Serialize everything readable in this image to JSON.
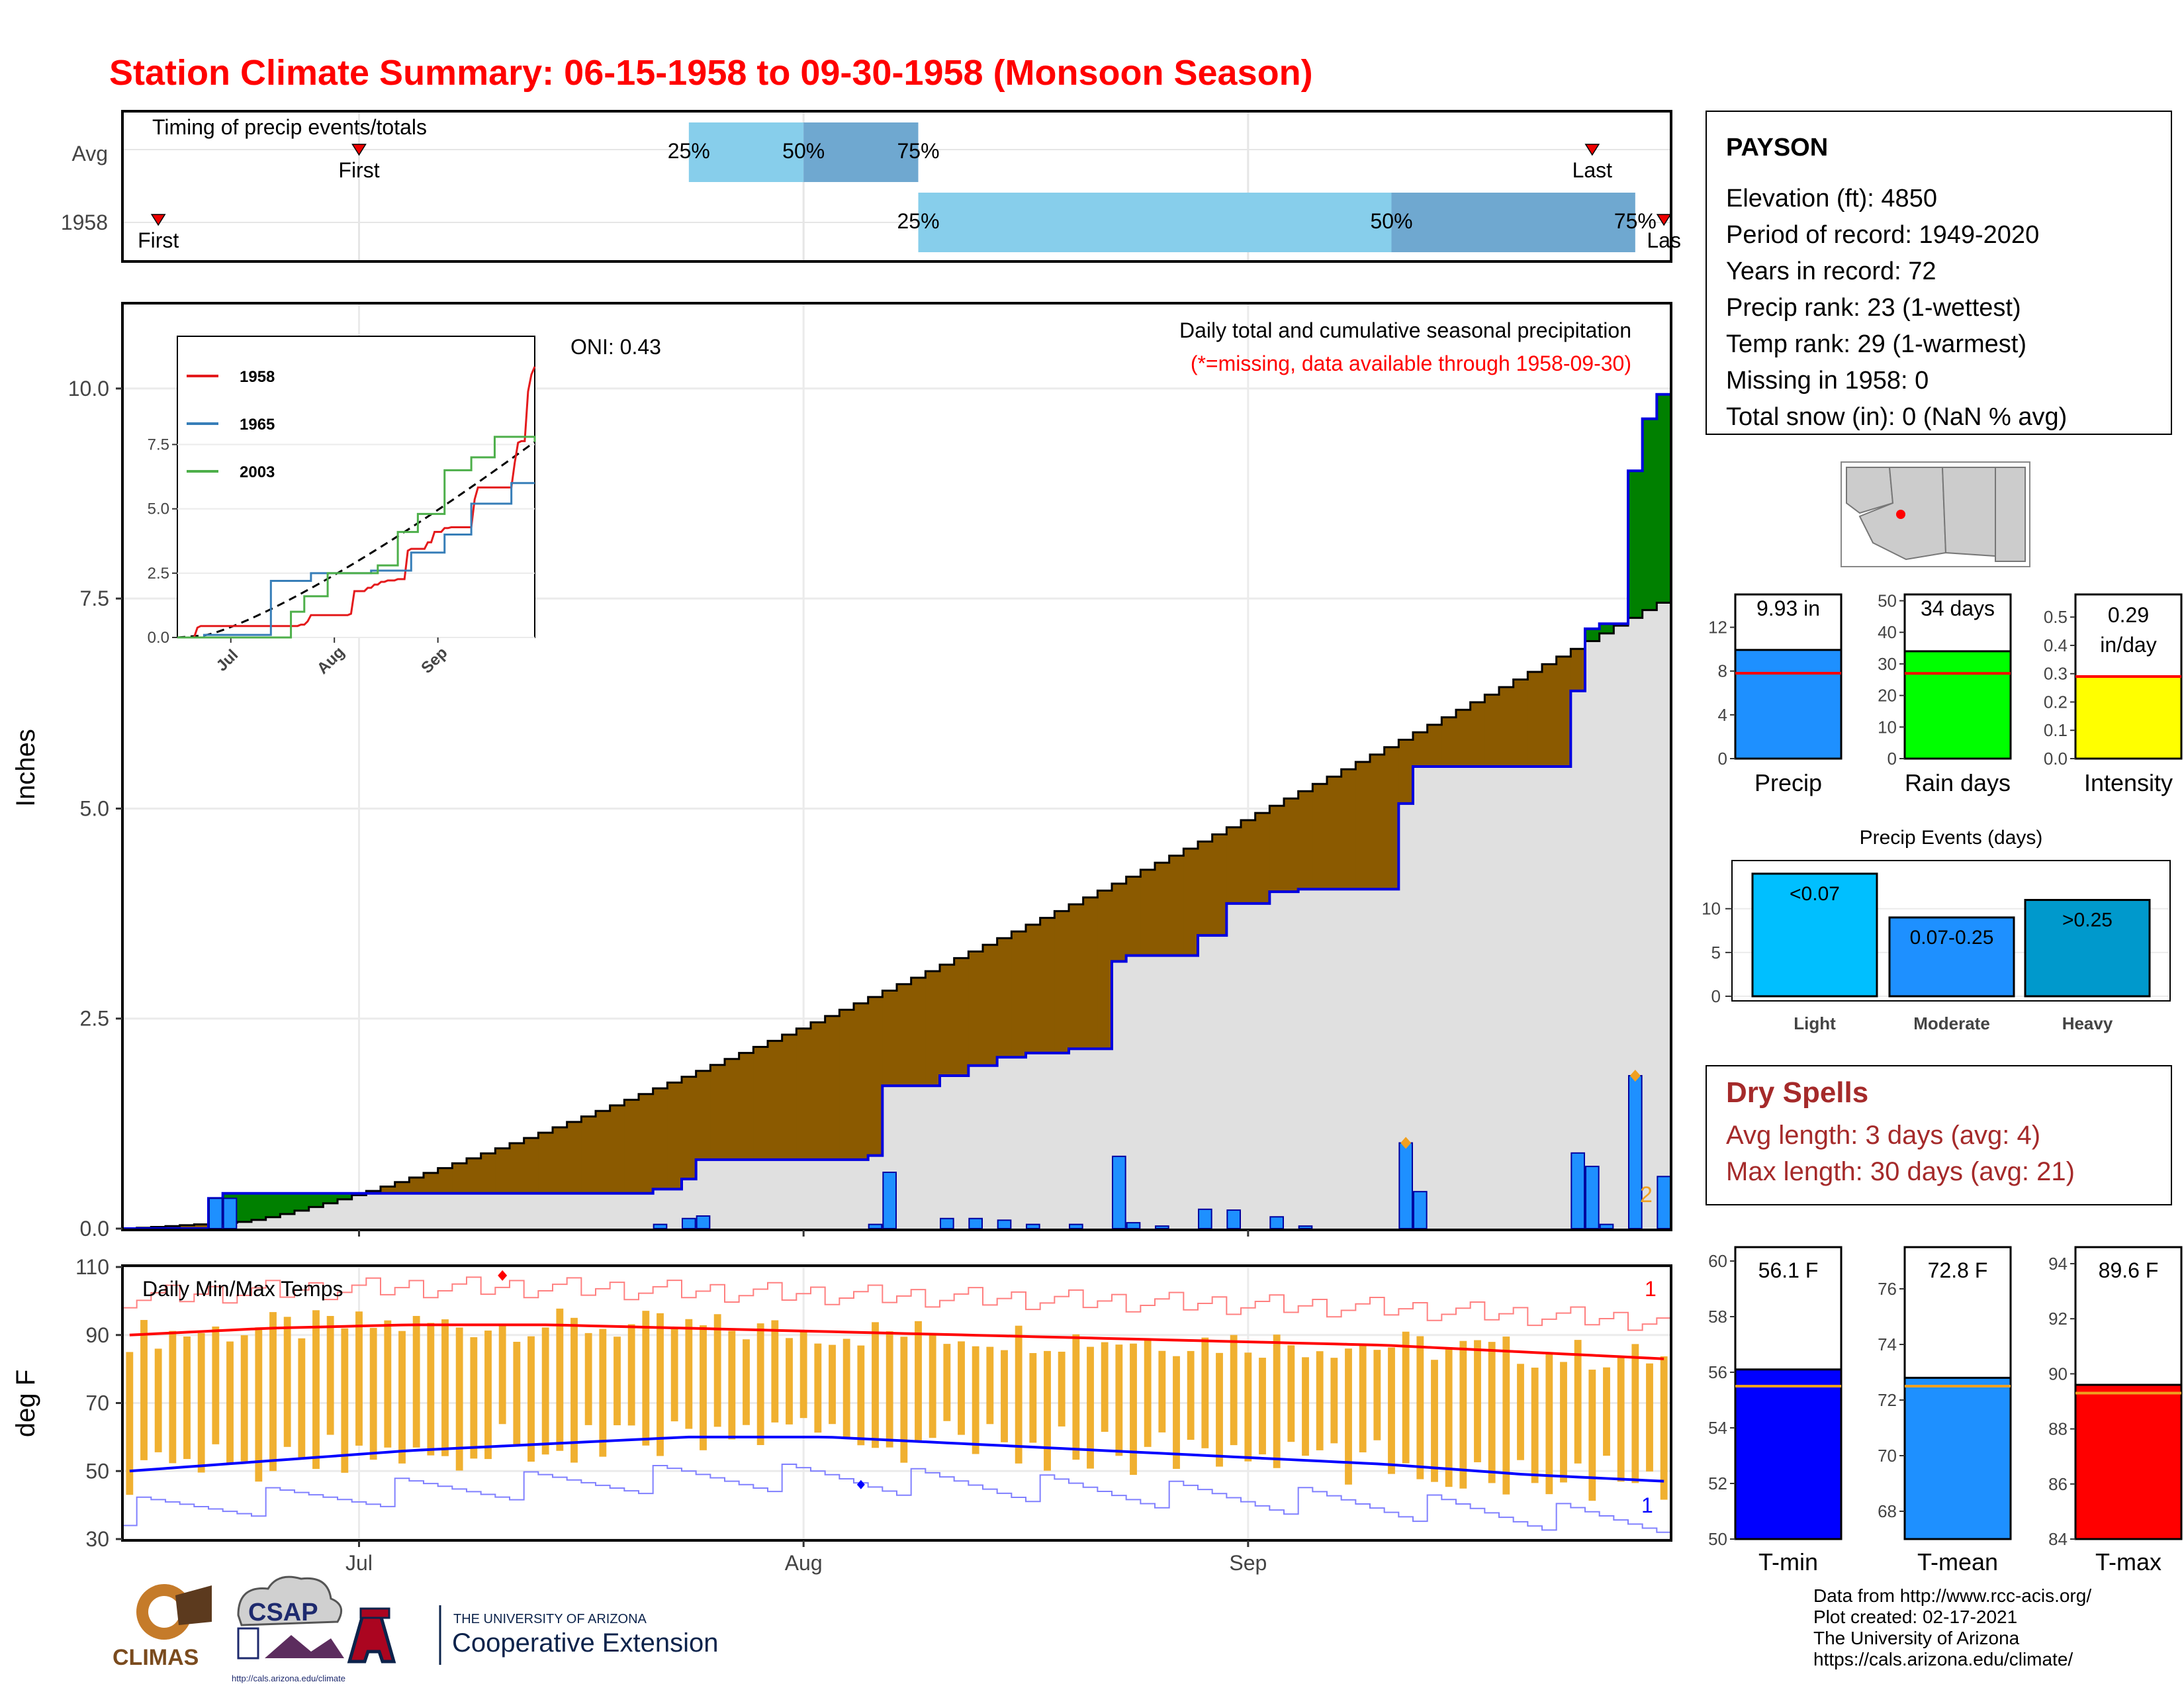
{
  "title": "Station Climate Summary: 06-15-1958 to 09-30-1958 (Monsoon Season)",
  "colors": {
    "title_red": "#ff0000",
    "precip_blue": "#1e90ff",
    "green": "#008000",
    "brown": "#8b5a00",
    "grey": "#e0e0e0",
    "light_blue": "#87ceeb",
    "steel": "#6fa8d0",
    "orange": "#f0b030",
    "tmax_red": "#ff0000",
    "tmin_blue": "#0000ff"
  },
  "timing": {
    "label": "Timing of precip events/totals",
    "rows": [
      "Avg",
      "1958"
    ],
    "avg": {
      "first": "2024-07-01",
      "last": "2024-09-25",
      "p25": "2024-07-24",
      "p50": "2024-08-01",
      "p75": "2024-08-09",
      "first_label": "First",
      "last_label": "Last"
    },
    "y1958": {
      "first": "2024-06-17",
      "last": "2024-09-30",
      "p25": "2024-08-09",
      "p50": "2024-09-11",
      "p75": "2024-09-28",
      "first_label": "First",
      "last_label": "Las"
    },
    "pct_labels": [
      "25%",
      "50%",
      "75%"
    ]
  },
  "chart_data": [
    {
      "type": "area",
      "name": "main-precip",
      "title": "Daily total and cumulative seasonal precipitation",
      "subtitle": "(*=missing, data available through 1958-09-30)",
      "oni": "ONI: 0.43",
      "ylabel": "Inches",
      "ylim": [
        0,
        11
      ],
      "yticks": [
        "0.0",
        "2.5",
        "5.0",
        "7.5",
        "10.0"
      ],
      "xticks": [
        "Jul",
        "Aug",
        "Sep"
      ],
      "x_start": "1958-06-15",
      "x_end": "1958-09-30",
      "daily_precip": [
        {
          "date": "09-12",
          "v": 1.02,
          "diamond": true
        },
        {
          "date": "09-28",
          "v": 1.82,
          "diamond": true
        }
      ],
      "daily_bars": [
        [
          "06-21",
          0.36
        ],
        [
          "06-22",
          0.36
        ],
        [
          "07-22",
          0.05
        ],
        [
          "07-24",
          0.12
        ],
        [
          "07-25",
          0.15
        ],
        [
          "08-06",
          0.05
        ],
        [
          "08-07",
          0.67
        ],
        [
          "08-11",
          0.12
        ],
        [
          "08-13",
          0.12
        ],
        [
          "08-15",
          0.1
        ],
        [
          "08-17",
          0.05
        ],
        [
          "08-20",
          0.05
        ],
        [
          "08-23",
          0.86
        ],
        [
          "08-24",
          0.07
        ],
        [
          "08-26",
          0.03
        ],
        [
          "08-29",
          0.23
        ],
        [
          "08-31",
          0.22
        ],
        [
          "09-03",
          0.14
        ],
        [
          "09-05",
          0.03
        ],
        [
          "09-12",
          1.02
        ],
        [
          "09-13",
          0.44
        ],
        [
          "09-24",
          0.9
        ],
        [
          "09-25",
          0.74
        ],
        [
          "09-26",
          0.05
        ],
        [
          "09-28",
          1.82
        ],
        [
          "09-30",
          0.62
        ]
      ],
      "cum_1958": [
        [
          "06-15",
          0
        ],
        [
          "06-20",
          0
        ],
        [
          "06-21",
          0.36
        ],
        [
          "06-22",
          0.42
        ],
        [
          "07-21",
          0.42
        ],
        [
          "07-22",
          0.47
        ],
        [
          "07-24",
          0.59
        ],
        [
          "07-25",
          0.82
        ],
        [
          "08-06",
          0.87
        ],
        [
          "08-07",
          1.7
        ],
        [
          "08-11",
          1.82
        ],
        [
          "08-13",
          1.94
        ],
        [
          "08-15",
          2.04
        ],
        [
          "08-17",
          2.09
        ],
        [
          "08-20",
          2.14
        ],
        [
          "08-23",
          3.18
        ],
        [
          "08-24",
          3.25
        ],
        [
          "08-29",
          3.49
        ],
        [
          "08-31",
          3.87
        ],
        [
          "09-03",
          4.01
        ],
        [
          "09-05",
          4.04
        ],
        [
          "09-11",
          4.04
        ],
        [
          "09-12",
          5.06
        ],
        [
          "09-13",
          5.5
        ],
        [
          "09-24",
          6.4
        ],
        [
          "09-25",
          7.14
        ],
        [
          "09-26",
          7.2
        ],
        [
          "09-28",
          9.02
        ],
        [
          "09-29",
          9.64
        ],
        [
          "09-30",
          9.93
        ]
      ],
      "cum_avg_end": 7.45,
      "avg_end_note": "cumulative average rising to ~7.45 in by 09-30",
      "inset": {
        "series": [
          {
            "name": "1958",
            "color": "#e41a1c"
          },
          {
            "name": "1965",
            "color": "#377eb8"
          },
          {
            "name": "2003",
            "color": "#4daf4a"
          }
        ],
        "yticks": [
          "0.0",
          "2.5",
          "5.0",
          "7.5"
        ],
        "xticks": [
          "Jul",
          "Aug",
          "Sep"
        ]
      }
    },
    {
      "type": "line",
      "name": "temps",
      "title": "Daily Min/Max Temps",
      "ylabel": "deg F",
      "ylim": [
        30,
        110
      ],
      "yticks": [
        "30",
        "50",
        "70",
        "90",
        "110"
      ],
      "xticks": [
        "Jul",
        "Aug",
        "Sep"
      ],
      "tmax_avg": [
        90,
        92,
        93,
        93,
        92,
        91,
        90,
        89,
        88,
        87,
        85,
        83
      ],
      "tmin_avg": [
        50,
        53,
        56,
        58,
        60,
        60,
        58,
        56,
        54,
        52,
        49,
        47
      ],
      "record_high_marker": "1",
      "record_low_marker": "1"
    },
    {
      "type": "bar",
      "name": "precip-summary",
      "categories": [
        "Precip",
        "Rain days",
        "Intensity"
      ],
      "values": [
        9.93,
        34,
        0.29
      ],
      "avg": [
        7.8,
        27,
        0.29
      ],
      "labels": [
        "9.93 in",
        "34 days",
        "0.29 in/day"
      ]
    },
    {
      "type": "bar",
      "name": "precip-events",
      "title": "Precip Events (days)",
      "categories": [
        "Light",
        "Moderate",
        "Heavy"
      ],
      "values": [
        14,
        9,
        11
      ],
      "labels": [
        "<0.07",
        "0.07-0.25",
        ">0.25"
      ]
    },
    {
      "type": "bar",
      "name": "temp-summary",
      "categories": [
        "T-min",
        "T-mean",
        "T-max"
      ],
      "values": [
        56.1,
        72.8,
        89.6
      ],
      "avg": [
        55.5,
        72.5,
        89.3
      ],
      "labels": [
        "56.1 F",
        "72.8 F",
        "89.6 F"
      ]
    }
  ],
  "station": {
    "name": "PAYSON",
    "lines": [
      "Elevation (ft): 4850",
      "Period of record: 1949-2020",
      "Years in record: 72",
      "Precip rank: 23 (1-wettest)",
      "Temp rank: 29 (1-warmest)",
      "Missing in 1958: 0",
      "Total snow (in): 0 (NaN % avg)"
    ]
  },
  "dry_spells": {
    "title": "Dry Spells",
    "avg": "Avg length: 3 days (avg: 4)",
    "max": "Max length: 30 days (avg: 21)"
  },
  "footer": {
    "lines": [
      "Data from http://www.rcc-acis.org/",
      "Plot created: 02-17-2021",
      "The University of Arizona",
      "https://cals.arizona.edu/climate/"
    ]
  },
  "logos": {
    "climas": "CLIMAS",
    "csap": "CSAP",
    "csap_url": "http://cals.arizona.edu/climate",
    "ua_small": "THE UNIVERSITY OF ARIZONA",
    "ua_big": "Cooperative Extension"
  }
}
